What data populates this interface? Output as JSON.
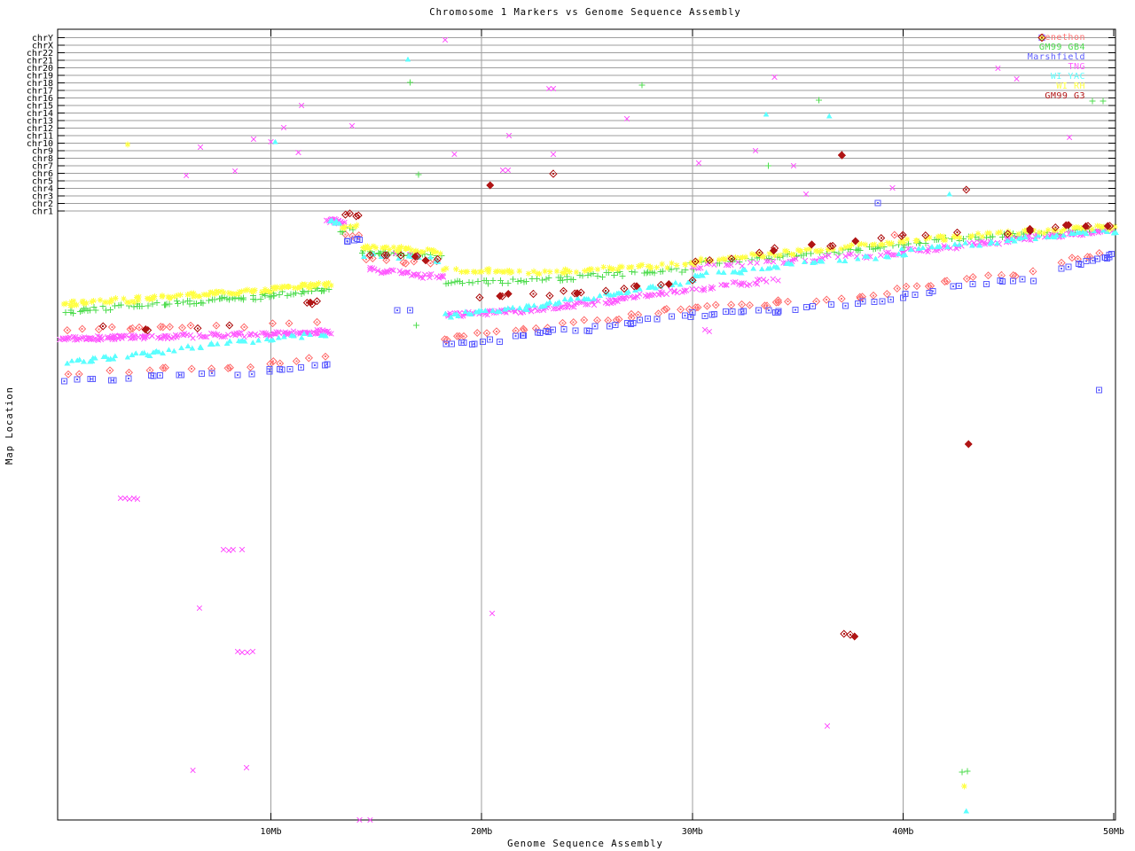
{
  "page": {
    "background": "#ffffff"
  },
  "chart_data": {
    "type": "scatter",
    "title": "Chromosome 1 Markers vs Genome Sequence Assembly",
    "xlabel": "Genome Sequence Assembly",
    "ylabel": "Map Location",
    "x_axis": {
      "range_mb": [
        0,
        50
      ],
      "tick_mb": [
        10,
        20,
        30,
        40,
        50
      ],
      "tick_labels": [
        "10Mb",
        "20Mb",
        "30Mb",
        "40Mb",
        "50Mb"
      ]
    },
    "y_axis": {
      "categories": [
        "chrY",
        "chrX",
        "chr22",
        "chr21",
        "chr20",
        "chr19",
        "chr18",
        "chr17",
        "chr16",
        "chr15",
        "chr14",
        "chr13",
        "chr12",
        "chr11",
        "chr10",
        "chr9",
        "chr8",
        "chr7",
        "chr6",
        "chr5",
        "chr4",
        "chr3",
        "chr2",
        "chr1"
      ],
      "note": "Horizontal gridlines mark each chromosome map; the unlabeled area below the chr1 line is the chr1 map-location scale. Point y-values below are given in screen pixels of the 960px-tall figure."
    },
    "grid_color": "#9e9e9e",
    "border_color": "#000000",
    "jitter_seed": 1337,
    "units": {
      "x": "Mb",
      "y": "screen_px_of_960"
    },
    "legend": {
      "position": "top-right",
      "entries": [
        {
          "label": "Genethon",
          "color": "#ff7373",
          "marker": "diamond-dot"
        },
        {
          "label": "GM99 GB4",
          "color": "#4fdc4f",
          "marker": "plus"
        },
        {
          "label": "Marshfield",
          "color": "#5c5cff",
          "marker": "square-dot"
        },
        {
          "label": "TNG",
          "color": "#ff5cff",
          "marker": "cross"
        },
        {
          "label": "WI YAC",
          "color": "#5cffff",
          "marker": "triangle"
        },
        {
          "label": "WI RH",
          "color": "#ffff44",
          "marker": "asterisk"
        },
        {
          "label": "GM99 G3",
          "color": "#b01515",
          "marker": "diamond-dot"
        }
      ]
    },
    "series": [
      {
        "name": "Genethon",
        "color": "#ff7373",
        "marker": "diamond-dot",
        "twin": 0.15,
        "runs": [
          [
            0.4,
            371,
            6,
            370,
            9
          ],
          [
            6.3,
            369,
            12.5,
            365,
            6
          ],
          [
            14.5,
            292,
            17.9,
            297,
            7
          ],
          [
            0.2,
            423,
            10,
            411,
            11
          ],
          [
            10,
            410,
            12.6,
            404,
            5
          ],
          [
            13.5,
            265,
            14.2,
            264,
            3
          ],
          [
            18.2,
            382,
            22,
            372,
            8
          ],
          [
            22,
            370,
            27,
            358,
            10
          ],
          [
            27,
            356,
            30,
            348,
            6
          ],
          [
            30,
            347,
            34,
            343,
            8
          ],
          [
            34,
            341,
            38,
            336,
            6
          ],
          [
            38,
            334,
            40,
            327,
            4
          ],
          [
            40,
            325,
            43.4,
            314,
            6
          ],
          [
            44,
            312,
            46.2,
            308,
            4
          ],
          [
            47.5,
            295,
            49.3,
            284,
            5
          ]
        ],
        "points": [
          [
            39.6,
            265
          ]
        ]
      },
      {
        "name": "GM99 GB4",
        "color": "#4fdc4f",
        "marker": "plus",
        "twin": 0.3,
        "runs": [
          [
            0.2,
            351,
            10,
            334,
            50
          ],
          [
            10,
            333,
            12.8,
            326,
            20
          ],
          [
            13.3,
            259,
            13.9,
            258,
            4
          ],
          [
            14.3,
            283,
            18,
            289,
            22
          ],
          [
            18.2,
            320,
            24,
            315,
            26
          ],
          [
            24,
            313,
            30,
            304,
            24
          ],
          [
            30,
            298,
            40,
            277,
            36
          ],
          [
            40,
            274,
            50,
            258,
            36
          ]
        ],
        "points": [
          [
            16.6,
            93
          ],
          [
            27.6,
            96
          ],
          [
            17.0,
            197
          ],
          [
            33.6,
            187
          ],
          [
            36.0,
            113
          ],
          [
            49.0,
            114
          ],
          [
            49.5,
            114
          ],
          [
            16.9,
            367
          ],
          [
            42.8,
            871
          ],
          [
            43.05,
            870
          ]
        ]
      },
      {
        "name": "Marshfield",
        "color": "#5c5cff",
        "marker": "square-dot",
        "twin": 0.2,
        "runs": [
          [
            0.0,
            431,
            10,
            419,
            13
          ],
          [
            10,
            418,
            12.6,
            411,
            6
          ],
          [
            13.5,
            273,
            14.2,
            272,
            4
          ],
          [
            18.2,
            390,
            22,
            380,
            9
          ],
          [
            22,
            378,
            27,
            366,
            11
          ],
          [
            27,
            364,
            30,
            356,
            7
          ],
          [
            30,
            355,
            34,
            351,
            9
          ],
          [
            34,
            349,
            38,
            344,
            7
          ],
          [
            38,
            342,
            40,
            335,
            5
          ],
          [
            40,
            333,
            43.4,
            322,
            7
          ],
          [
            44,
            320,
            46.2,
            316,
            5
          ],
          [
            47.5,
            303,
            49.3,
            292,
            6
          ],
          [
            49.5,
            290,
            49.9,
            288,
            4
          ]
        ],
        "points": [
          [
            38.8,
            229
          ],
          [
            49.3,
            440
          ],
          [
            16.0,
            350
          ],
          [
            16.6,
            350
          ]
        ]
      },
      {
        "name": "TNG",
        "color": "#ff5cff",
        "marker": "cross",
        "twin": 0.45,
        "runs": [
          [
            0.0,
            383,
            4,
            380,
            40
          ],
          [
            4,
            381,
            9.8,
            377,
            40
          ],
          [
            9.9,
            377,
            12.7,
            374,
            30
          ],
          [
            12.7,
            248,
            13.4,
            251,
            14
          ],
          [
            14.6,
            304,
            18.2,
            313,
            26
          ],
          [
            18.3,
            356,
            23,
            349,
            32
          ],
          [
            23,
            347,
            26.5,
            339,
            26
          ],
          [
            26.5,
            337,
            29.7,
            327,
            22
          ],
          [
            30,
            326,
            34,
            316,
            20
          ],
          [
            30,
            301,
            36,
            293,
            18
          ],
          [
            36,
            291,
            40,
            286,
            14
          ],
          [
            40,
            284,
            45,
            272,
            30
          ],
          [
            45,
            270,
            50,
            260,
            35
          ]
        ],
        "points": [
          [
            6.65,
            166
          ],
          [
            9.17,
            157
          ],
          [
            10.0,
            160
          ],
          [
            11.45,
            119
          ],
          [
            10.6,
            144
          ],
          [
            13.85,
            142
          ],
          [
            11.3,
            172
          ],
          [
            8.3,
            193
          ],
          [
            5.98,
            198
          ],
          [
            18.27,
            45
          ],
          [
            23.2,
            100
          ],
          [
            23.4,
            100
          ],
          [
            21.3,
            153
          ],
          [
            26.9,
            134
          ],
          [
            18.7,
            174
          ],
          [
            23.4,
            174
          ],
          [
            30.3,
            184
          ],
          [
            21.0,
            192
          ],
          [
            21.25,
            192
          ],
          [
            33.0,
            170
          ],
          [
            33.9,
            87
          ],
          [
            44.5,
            77
          ],
          [
            45.4,
            89
          ],
          [
            47.9,
            155
          ],
          [
            34.8,
            187
          ],
          [
            39.5,
            212
          ],
          [
            35.4,
            219
          ],
          [
            2.86,
            562
          ],
          [
            3.07,
            562
          ],
          [
            3.28,
            563
          ],
          [
            3.49,
            562
          ],
          [
            3.66,
            563
          ],
          [
            7.74,
            620
          ],
          [
            8.0,
            621
          ],
          [
            8.2,
            620
          ],
          [
            8.63,
            620
          ],
          [
            6.6,
            686
          ],
          [
            20.5,
            692
          ],
          [
            8.42,
            735
          ],
          [
            8.63,
            736
          ],
          [
            8.88,
            736
          ],
          [
            9.13,
            735
          ],
          [
            36.4,
            819
          ],
          [
            6.3,
            869
          ],
          [
            8.84,
            866
          ],
          [
            14.2,
            925
          ],
          [
            14.7,
            925
          ],
          [
            30.6,
            372
          ],
          [
            30.8,
            374
          ],
          [
            15.9,
            286
          ],
          [
            16.6,
            287
          ],
          [
            16.9,
            286
          ]
        ]
      },
      {
        "name": "WI YAC",
        "color": "#5cffff",
        "marker": "triangle",
        "twin": 0.3,
        "runs": [
          [
            0.3,
            409,
            7.1,
            390,
            26
          ],
          [
            7.2,
            389,
            12.6,
            376,
            18
          ],
          [
            12.8,
            250,
            13.3,
            252,
            5
          ],
          [
            14.4,
            288,
            18,
            293,
            10
          ],
          [
            18.2,
            356,
            23,
            344,
            20
          ],
          [
            23,
            342,
            26.5,
            331,
            16
          ],
          [
            26.5,
            329,
            30,
            317,
            14
          ],
          [
            30,
            311,
            34,
            302,
            12
          ],
          [
            34,
            300,
            40,
            287,
            14
          ],
          [
            40,
            283,
            45,
            272,
            16
          ],
          [
            45,
            270,
            50,
            261,
            18
          ]
        ],
        "points": [
          [
            10.2,
            160
          ],
          [
            16.5,
            67
          ],
          [
            33.5,
            129
          ],
          [
            36.5,
            131
          ],
          [
            42.2,
            219
          ],
          [
            43.0,
            915
          ]
        ]
      },
      {
        "name": "WI RH",
        "color": "#ffff44",
        "marker": "asterisk",
        "twin": 0.35,
        "runs": [
          [
            0.2,
            343,
            10,
            327,
            55
          ],
          [
            10,
            326,
            12.8,
            321,
            22
          ],
          [
            13.4,
            257,
            14.1,
            255,
            5
          ],
          [
            14.3,
            279,
            18,
            284,
            26
          ],
          [
            18.2,
            305,
            24,
            307,
            22
          ],
          [
            24,
            306,
            30,
            298,
            26
          ],
          [
            30,
            295,
            40,
            273,
            40
          ],
          [
            40,
            271,
            50,
            256,
            40
          ]
        ],
        "points": [
          [
            3.2,
            163
          ],
          [
            42.9,
            887
          ]
        ]
      },
      {
        "name": "GM99 G3",
        "color": "#b01515",
        "marker": "diamond-dot",
        "twin": 0.25,
        "runs": [
          [
            2,
            370,
            8,
            368,
            4
          ],
          [
            11.6,
            342,
            12.2,
            341,
            4
          ],
          [
            13.6,
            241,
            14.1,
            242,
            3
          ],
          [
            14.7,
            288,
            18,
            293,
            6
          ],
          [
            20,
            335,
            24.5,
            330,
            7
          ],
          [
            24.8,
            328,
            30,
            317,
            7
          ],
          [
            30,
            295,
            34,
            285,
            5
          ],
          [
            34,
            281,
            40,
            268,
            6
          ],
          [
            40,
            267,
            46,
            261,
            5
          ],
          [
            46,
            259,
            49.8,
            253,
            5
          ]
        ],
        "points": [
          [
            20.4,
            209
          ],
          [
            23.4,
            196
          ],
          [
            37.1,
            175
          ],
          [
            43.0,
            214
          ],
          [
            43.1,
            501
          ],
          [
            37.2,
            715
          ],
          [
            37.5,
            716
          ],
          [
            37.7,
            718
          ]
        ]
      }
    ]
  }
}
